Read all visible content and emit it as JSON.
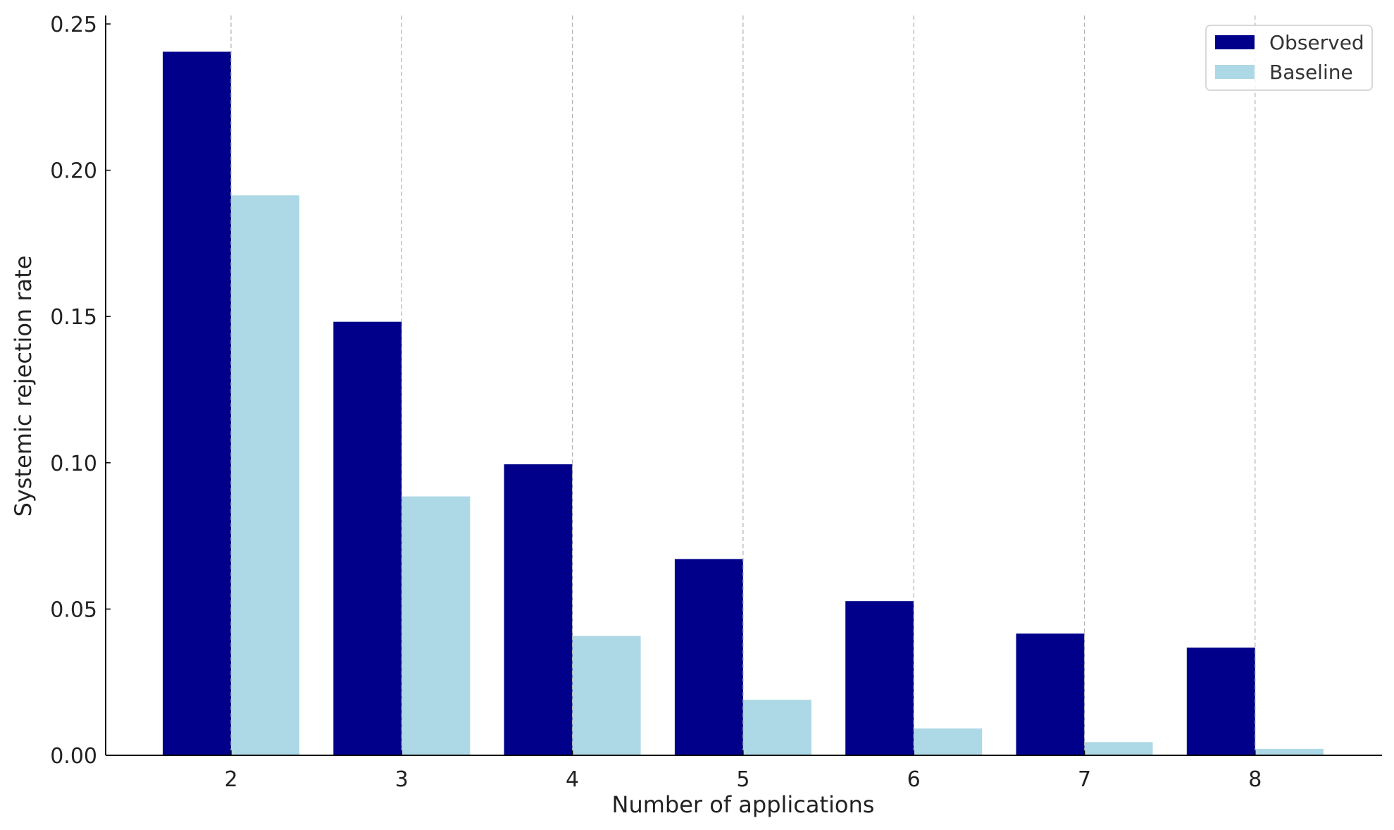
{
  "chart_data": {
    "type": "bar",
    "title": "",
    "xlabel": "Number of applications",
    "ylabel": "Systemic rejection rate",
    "categories": [
      "2",
      "3",
      "4",
      "5",
      "6",
      "7",
      "8"
    ],
    "series": [
      {
        "name": "Observed",
        "color": "#00008b",
        "values": [
          0.2405,
          0.1482,
          0.0995,
          0.0671,
          0.0527,
          0.0416,
          0.0368
        ]
      },
      {
        "name": "Baseline",
        "color": "#add8e6",
        "values": [
          0.1914,
          0.0885,
          0.0408,
          0.019,
          0.0092,
          0.0045,
          0.0022
        ]
      }
    ],
    "ylim": [
      0,
      0.25
    ],
    "yticks": [
      "0.00",
      "0.05",
      "0.10",
      "0.15",
      "0.20",
      "0.25"
    ],
    "grid": "x-dashed",
    "legend": "top-right"
  }
}
